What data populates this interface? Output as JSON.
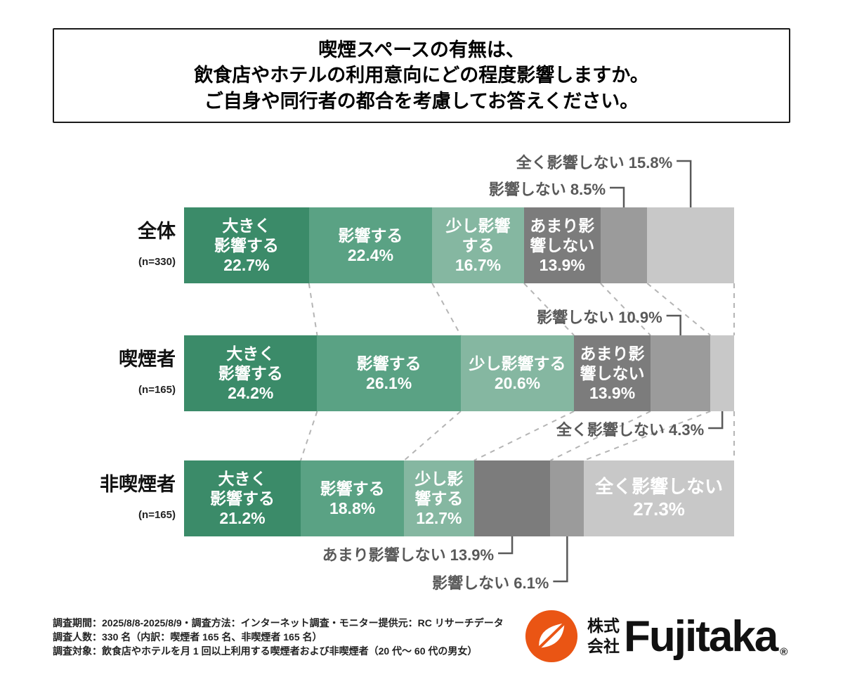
{
  "title": {
    "lines": [
      "喫煙スペースの有無は、",
      "飲食店やホテルの利用意向にどの程度影響しますか。",
      "ご自身や同行者の都合を考慮してお答えください。"
    ]
  },
  "chart_data": {
    "type": "bar",
    "variant": "horizontal-stacked-100",
    "unit": "%",
    "categories": [
      "全体",
      "喫煙者",
      "非喫煙者"
    ],
    "category_sublabels": [
      "(n=330)",
      "(n=165)",
      "(n=165)"
    ],
    "series": [
      {
        "name": "大きく影響する",
        "color": "#3b8b69",
        "values": [
          22.7,
          24.2,
          21.2
        ]
      },
      {
        "name": "影響する",
        "color": "#5aa284",
        "values": [
          22.4,
          26.1,
          18.8
        ]
      },
      {
        "name": "少し影響する",
        "color": "#85b7a1",
        "values": [
          16.7,
          20.6,
          12.7
        ]
      },
      {
        "name": "あまり影響しない",
        "color": "#7c7c7c",
        "values": [
          13.9,
          13.9,
          13.9
        ]
      },
      {
        "name": "影響しない",
        "color": "#9b9b9b",
        "values": [
          8.5,
          10.9,
          6.1
        ]
      },
      {
        "name": "全く影響しない",
        "color": "#c8c8c8",
        "values": [
          15.8,
          4.3,
          27.3
        ]
      }
    ],
    "bar_labels": [
      [
        "大きく\n影響する\n22.7%",
        "影響する\n22.4%",
        "少し影響\nする\n16.7%",
        "あまり影\n響しない\n13.9%",
        null,
        null
      ],
      [
        "大きく\n影響する\n24.2%",
        "影響する\n26.1%",
        "少し影響する\n20.6%",
        "あまり影\n響しない\n13.9%",
        null,
        null
      ],
      [
        "大きく\n影響する\n21.2%",
        "影響する\n18.8%",
        "少し影\n響する\n12.7%",
        null,
        null,
        "全く影響しない\n27.3%"
      ]
    ],
    "callouts": [
      {
        "row": 0,
        "series": 5,
        "text": "全く影響しない 15.8%",
        "placement": "above",
        "level": 2
      },
      {
        "row": 0,
        "series": 4,
        "text": "影響しない  8.5%",
        "placement": "above",
        "level": 1
      },
      {
        "row": 1,
        "series": 4,
        "text": "影響しない  10.9%",
        "placement": "above",
        "level": 1
      },
      {
        "row": 1,
        "series": 5,
        "text": "全く影響しない 4.3%",
        "placement": "below",
        "level": 1
      },
      {
        "row": 2,
        "series": 3,
        "text": "あまり影響しない 13.9%",
        "placement": "below",
        "level": 1
      },
      {
        "row": 2,
        "series": 4,
        "text": "影響しない  6.1%",
        "placement": "below",
        "level": 2
      }
    ]
  },
  "footer": {
    "lines": [
      "調査期間：2025/8/8-2025/8/9・調査方法：インターネット調査・モニター提供元：RC リサーチデータ",
      "調査人数：330 名（内訳：喫煙者 165 名、非喫煙者 165 名）",
      "調査対象：飲食店やホテルを月 1 回以上利用する喫煙者および非喫煙者（20 代～ 60 代の男女）"
    ]
  },
  "logo": {
    "company": [
      "株式",
      "会社"
    ],
    "brand": "Fujitaka",
    "registered": "®",
    "accent_color": "#ea5514"
  }
}
